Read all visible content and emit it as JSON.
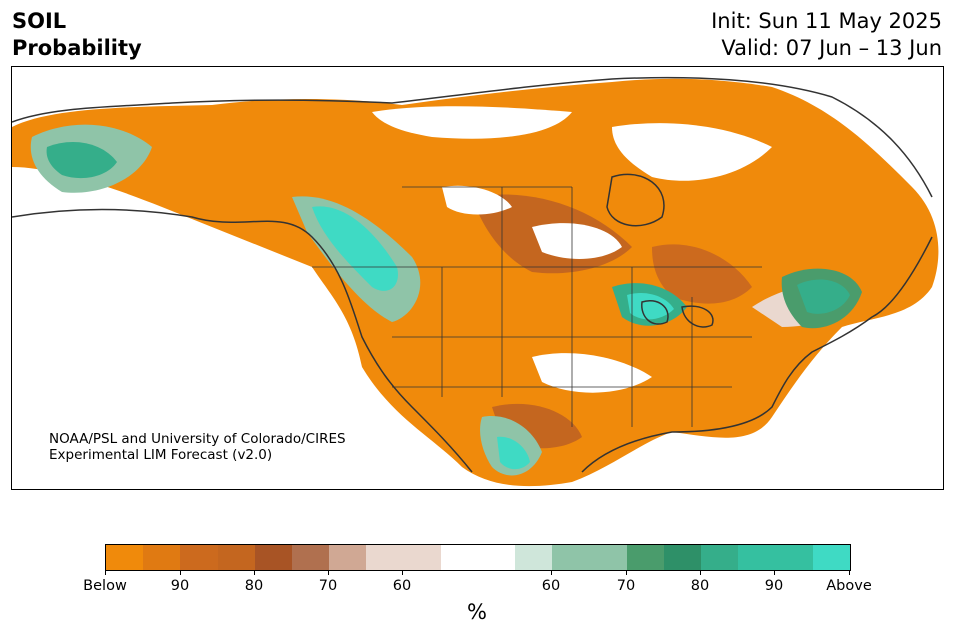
{
  "header": {
    "title_line1": "SOIL",
    "title_line2": "Probability",
    "init": "Init: Sun 11 May 2025",
    "valid": "Valid: 07 Jun – 13 Jun"
  },
  "credit": {
    "line1": "NOAA/PSL and University of Colorado/CIRES",
    "line2": "Experimental LIM Forecast (v2.0)"
  },
  "legend": {
    "unit": "%",
    "colors": [
      "#f08a0b",
      "#e07a12",
      "#cc6a1e",
      "#c4661f",
      "#a85425",
      "#b0704f",
      "#d0a894",
      "#ead8cf",
      "#ead8cf",
      "#ffffff",
      "#ffffff",
      "#cfe6da",
      "#8fc4a8",
      "#8fc4a8",
      "#4a9c6c",
      "#2e9068",
      "#35ae8a",
      "#35c0a0",
      "#35c0a0",
      "#3fdac4"
    ],
    "tick_labels": [
      "Below",
      "90",
      "80",
      "70",
      "60",
      "60",
      "70",
      "80",
      "90",
      "Above"
    ]
  },
  "colors": {
    "below_strong": "#f08a0b",
    "below_mid": "#c4661f",
    "below_weak": "#ead8cf",
    "above_weak": "#8fc4a8",
    "above_mid": "#35ae8a",
    "above_strong": "#3fdac4",
    "coastline": "#333333"
  }
}
